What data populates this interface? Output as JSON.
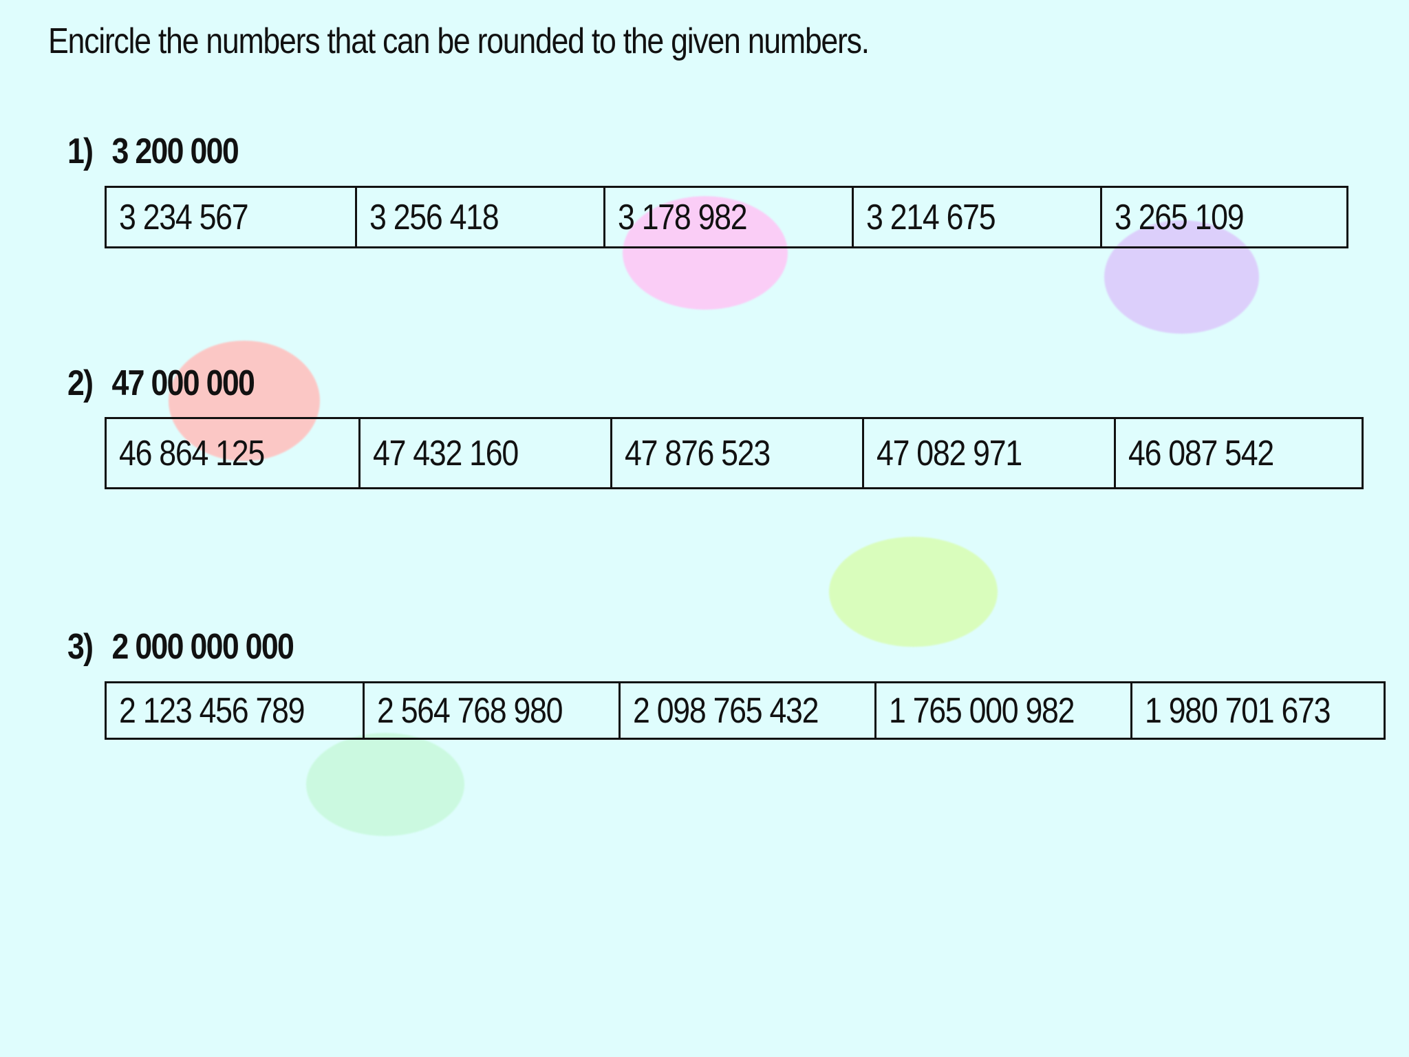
{
  "instruction": "Encircle the numbers that can be rounded to the given numbers.",
  "questions": [
    {
      "number": "1)",
      "target": "3 200 000",
      "options": [
        "3 234 567",
        "3 256 418",
        "3 178 982",
        "3 214 675",
        "3 265 109"
      ]
    },
    {
      "number": "2)",
      "target": "47 000 000",
      "options": [
        "46 864 125",
        "47 432 160",
        "47 876 523",
        "47 082 971",
        "46 087  542"
      ]
    },
    {
      "number": "3)",
      "target": "2 000 000 000",
      "options": [
        "2 123 456 789",
        "2 564 768 980",
        "2 098 765 432",
        "1 765 000 982",
        "1 980 701 673"
      ]
    }
  ],
  "colors": {
    "background": "#dffdfd",
    "blob_pink": "#fdc8f6",
    "blob_purple": "#dccbfb",
    "blob_red": "#ffc2c0",
    "blob_lime": "#d9fdb6",
    "blob_mint": "#c9f9dd"
  }
}
